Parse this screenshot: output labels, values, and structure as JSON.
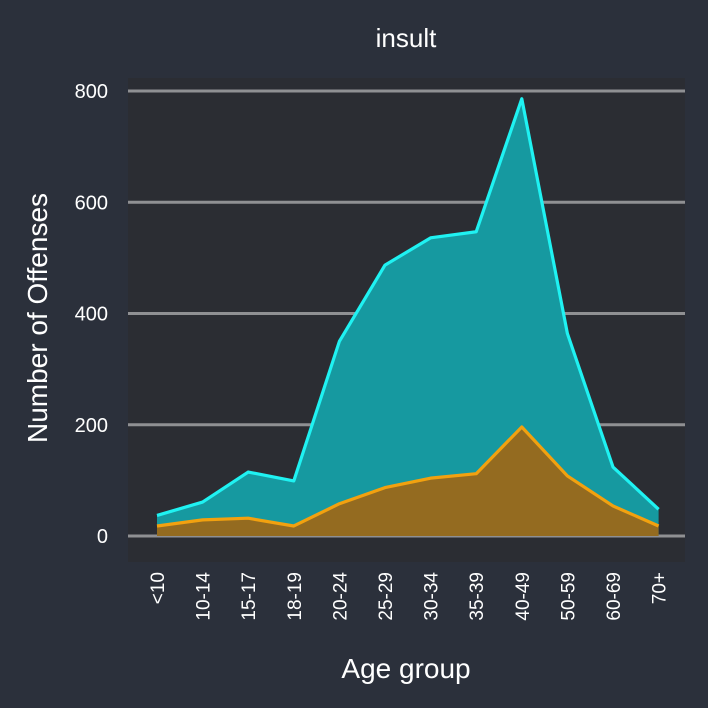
{
  "chart_data": {
    "type": "area",
    "title": "insult",
    "xlabel": "Age group",
    "ylabel": "Number of Offenses",
    "ylim": [
      -40,
      810
    ],
    "yticks": [
      0,
      200,
      400,
      600,
      800
    ],
    "grid": true,
    "categories": [
      "<10",
      "10-14",
      "15-17",
      "18-19",
      "20-24",
      "25-29",
      "30-34",
      "35-39",
      "40-49",
      "50-59",
      "60-69",
      "70+"
    ],
    "series": [
      {
        "values": [
          37,
          61,
          115,
          99,
          350,
          487,
          536,
          547,
          786,
          364,
          124,
          48
        ],
        "line_color": "#1ff2f2",
        "fill_color": "#1699a0"
      },
      {
        "values": [
          18,
          29,
          32,
          18,
          58,
          87,
          104,
          112,
          196,
          108,
          54,
          18
        ],
        "line_color": "#f2a10f",
        "fill_color": "#946b20"
      }
    ],
    "colors": {
      "background": "#2b303b",
      "panel": "#2b2d33",
      "grid": "#8f9093"
    }
  }
}
